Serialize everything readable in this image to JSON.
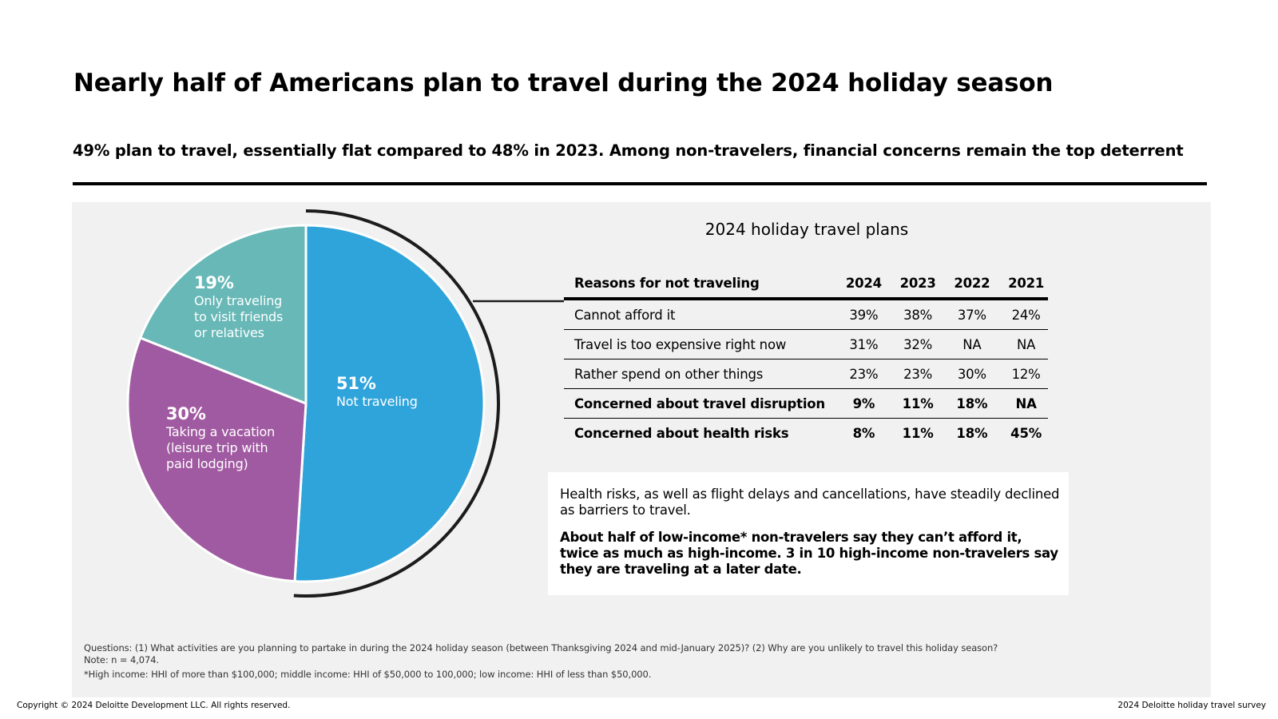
{
  "title": "Nearly half of Americans plan to travel during the 2024 holiday season",
  "subtitle": "49% plan to travel, essentially flat compared to 48% in 2023. Among non-travelers, financial concerns remain the top deterrent",
  "chart_data": [
    {
      "type": "pie",
      "title": "2024 holiday travel plans",
      "start_angle_deg": 0,
      "direction": "clockwise",
      "categories": [
        "Not traveling",
        "Taking a vacation (leisure trip with paid lodging)",
        "Only traveling to visit friends or relatives"
      ],
      "values": [
        51,
        30,
        19
      ],
      "labels": [
        "51%",
        "30%",
        "19%"
      ],
      "colors": [
        "#2fa4db",
        "#a05aa1",
        "#67b8b7"
      ],
      "highlight": "Not traveling",
      "slices": [
        {
          "pct": "51%",
          "text": "Not traveling"
        },
        {
          "pct": "30%",
          "text": "Taking a vacation\n(leisure trip with\npaid lodging)"
        },
        {
          "pct": "19%",
          "text": "Only traveling\nto visit friends\nor relatives"
        }
      ]
    },
    {
      "type": "table",
      "headers": [
        "Reasons for not traveling",
        "2024",
        "2023",
        "2022",
        "2021"
      ],
      "rows": [
        {
          "cells": [
            "Cannot afford it",
            "39%",
            "38%",
            "37%",
            "24%"
          ],
          "bold": false
        },
        {
          "cells": [
            "Travel is too expensive right now",
            "31%",
            "32%",
            "NA",
            "NA"
          ],
          "bold": false
        },
        {
          "cells": [
            "Rather spend on other things",
            "23%",
            "23%",
            "30%",
            "12%"
          ],
          "bold": false
        },
        {
          "cells": [
            "Concerned about travel disruption",
            "9%",
            "11%",
            "18%",
            "NA"
          ],
          "bold": true
        },
        {
          "cells": [
            "Concerned about health risks",
            "8%",
            "11%",
            "18%",
            "45%"
          ],
          "bold": true
        }
      ]
    }
  ],
  "note": {
    "paragraph1": "Health risks, as well as flight delays and cancellations, have steadily declined as barriers to travel.",
    "paragraph2": "About half of low-income* non-travelers say they can’t afford it, twice as much as high-income. 3 in 10 high-income non-travelers say they are traveling at a later date."
  },
  "footnotes": {
    "questions": "Questions: (1) What activities are you planning to partake in during the 2024 holiday season (between Thanksgiving 2024 and mid-January 2025)? (2) Why are you unlikely to travel this holiday season?",
    "note": "Note: n = 4,074.",
    "income": "*High income: HHI of more than $100,000; middle income: HHI of $50,000 to 100,000; low income: HHI of less than $50,000."
  },
  "footer": {
    "copyright": "Copyright © 2024 Deloitte Development LLC. All rights reserved.",
    "source": "2024 Deloitte holiday travel survey"
  },
  "colors": {
    "panel_bg": "#f1f1f1",
    "accent_blue": "#2fa4db",
    "accent_purple": "#a05aa1",
    "accent_teal": "#67b8b7"
  }
}
